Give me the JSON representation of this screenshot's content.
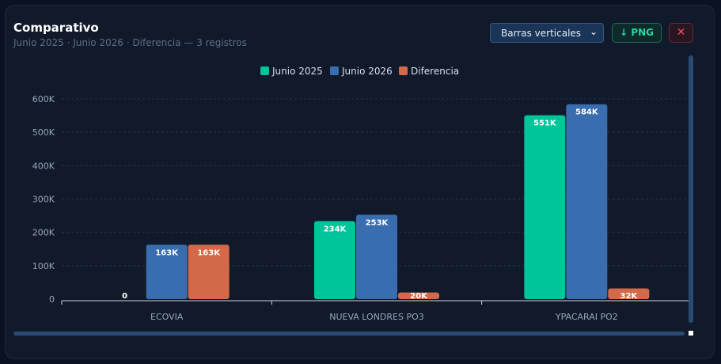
{
  "header": {
    "title": "Comparativo",
    "subtitle": "Junio 2025 · Junio 2026 · Diferencia — 3 registros"
  },
  "controls": {
    "chart_type_selected": "Barras verticales",
    "png_label": "PNG",
    "download_icon": "arrow-down-icon",
    "close_icon": "close-icon"
  },
  "chart_data": {
    "type": "bar",
    "categories": [
      "ECOVIA",
      "NUEVA LONDRES PO3",
      "YPACARAI PO2"
    ],
    "series": [
      {
        "name": "Junio 2025",
        "color": "#00c49a",
        "values": [
          0,
          234000,
          551000
        ],
        "labels": [
          "0",
          "234K",
          "551K"
        ]
      },
      {
        "name": "Junio 2026",
        "color": "#3a6db0",
        "values": [
          163000,
          253000,
          584000
        ],
        "labels": [
          "163K",
          "253K",
          "584K"
        ]
      },
      {
        "name": "Diferencia",
        "color": "#d26a4a",
        "values": [
          163000,
          20000,
          32000
        ],
        "labels": [
          "163K",
          "20K",
          "32K"
        ]
      }
    ],
    "yticks": [
      0,
      100000,
      200000,
      300000,
      400000,
      500000,
      600000
    ],
    "ytick_labels": [
      "0",
      "100K",
      "200K",
      "300K",
      "400K",
      "500K",
      "600K"
    ],
    "ylim": [
      0,
      600000
    ],
    "grid": true,
    "legend_position": "top-center"
  }
}
